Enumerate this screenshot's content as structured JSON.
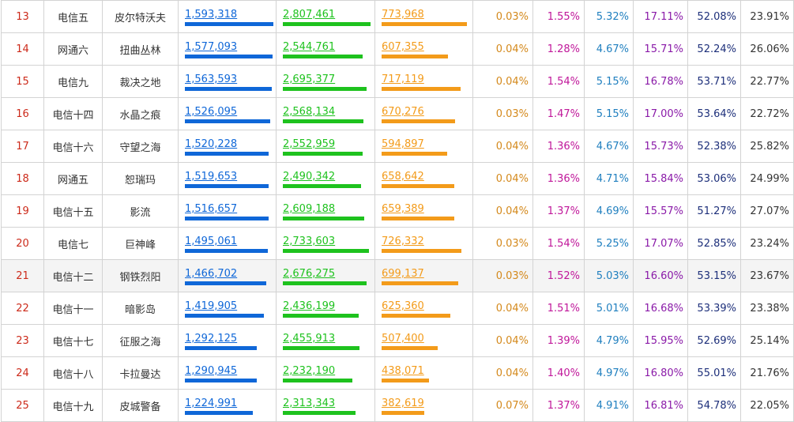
{
  "colors": {
    "rank": "#cc2a1a",
    "bar_blue": "#0f67d8",
    "bar_green": "#1ec21e",
    "bar_orange": "#f39b1a",
    "pct1": "#d4891c",
    "pct2": "#c0179a",
    "pct3": "#1f7fbf",
    "pct4": "#8a1aa8",
    "pct5": "#1d2f7a",
    "pct6": "#333333"
  },
  "rows": [
    {
      "rank": "13",
      "server": "电信五",
      "name": "皮尔特沃夫",
      "v1": "1,593,318",
      "v2": "2,807,461",
      "v3": "773,968",
      "p1": "0.03%",
      "p2": "1.55%",
      "p3": "5.32%",
      "p4": "17.11%",
      "p5": "52.08%",
      "p6": "23.91%",
      "f1": 1.0,
      "f2": 0.99,
      "f3": 0.96,
      "highlight": false
    },
    {
      "rank": "14",
      "server": "网通六",
      "name": "扭曲丛林",
      "v1": "1,577,093",
      "v2": "2,544,761",
      "v3": "607,355",
      "p1": "0.04%",
      "p2": "1.28%",
      "p3": "4.67%",
      "p4": "15.71%",
      "p5": "52.24%",
      "p6": "26.06%",
      "f1": 0.99,
      "f2": 0.9,
      "f3": 0.75,
      "highlight": false
    },
    {
      "rank": "15",
      "server": "电信九",
      "name": "裁决之地",
      "v1": "1,563,593",
      "v2": "2,695,377",
      "v3": "717,119",
      "p1": "0.04%",
      "p2": "1.54%",
      "p3": "5.15%",
      "p4": "16.78%",
      "p5": "53.71%",
      "p6": "22.77%",
      "f1": 0.98,
      "f2": 0.95,
      "f3": 0.89,
      "highlight": false
    },
    {
      "rank": "16",
      "server": "电信十四",
      "name": "水晶之痕",
      "v1": "1,526,095",
      "v2": "2,568,134",
      "v3": "670,276",
      "p1": "0.03%",
      "p2": "1.47%",
      "p3": "5.15%",
      "p4": "17.00%",
      "p5": "53.64%",
      "p6": "22.72%",
      "f1": 0.96,
      "f2": 0.91,
      "f3": 0.83,
      "highlight": false
    },
    {
      "rank": "17",
      "server": "电信十六",
      "name": "守望之海",
      "v1": "1,520,228",
      "v2": "2,552,959",
      "v3": "594,897",
      "p1": "0.04%",
      "p2": "1.36%",
      "p3": "4.67%",
      "p4": "15.73%",
      "p5": "52.38%",
      "p6": "25.82%",
      "f1": 0.95,
      "f2": 0.9,
      "f3": 0.74,
      "highlight": false
    },
    {
      "rank": "18",
      "server": "网通五",
      "name": "恕瑞玛",
      "v1": "1,519,653",
      "v2": "2,490,342",
      "v3": "658,642",
      "p1": "0.04%",
      "p2": "1.36%",
      "p3": "4.71%",
      "p4": "15.84%",
      "p5": "53.06%",
      "p6": "24.99%",
      "f1": 0.95,
      "f2": 0.88,
      "f3": 0.82,
      "highlight": false
    },
    {
      "rank": "19",
      "server": "电信十五",
      "name": "影流",
      "v1": "1,516,657",
      "v2": "2,609,188",
      "v3": "659,389",
      "p1": "0.04%",
      "p2": "1.37%",
      "p3": "4.69%",
      "p4": "15.57%",
      "p5": "51.27%",
      "p6": "27.07%",
      "f1": 0.95,
      "f2": 0.92,
      "f3": 0.82,
      "highlight": false
    },
    {
      "rank": "20",
      "server": "电信七",
      "name": "巨神峰",
      "v1": "1,495,061",
      "v2": "2,733,603",
      "v3": "726,332",
      "p1": "0.03%",
      "p2": "1.54%",
      "p3": "5.25%",
      "p4": "17.07%",
      "p5": "52.85%",
      "p6": "23.24%",
      "f1": 0.94,
      "f2": 0.97,
      "f3": 0.9,
      "highlight": false
    },
    {
      "rank": "21",
      "server": "电信十二",
      "name": "钢铁烈阳",
      "v1": "1,466,702",
      "v2": "2,676,275",
      "v3": "699,137",
      "p1": "0.03%",
      "p2": "1.52%",
      "p3": "5.03%",
      "p4": "16.60%",
      "p5": "53.15%",
      "p6": "23.67%",
      "f1": 0.92,
      "f2": 0.95,
      "f3": 0.87,
      "highlight": true
    },
    {
      "rank": "22",
      "server": "电信十一",
      "name": "暗影岛",
      "v1": "1,419,905",
      "v2": "2,436,199",
      "v3": "625,360",
      "p1": "0.04%",
      "p2": "1.51%",
      "p3": "5.01%",
      "p4": "16.68%",
      "p5": "53.39%",
      "p6": "23.38%",
      "f1": 0.89,
      "f2": 0.86,
      "f3": 0.78,
      "highlight": false
    },
    {
      "rank": "23",
      "server": "电信十七",
      "name": "征服之海",
      "v1": "1,292,125",
      "v2": "2,455,913",
      "v3": "507,400",
      "p1": "0.04%",
      "p2": "1.39%",
      "p3": "4.79%",
      "p4": "15.95%",
      "p5": "52.69%",
      "p6": "25.14%",
      "f1": 0.81,
      "f2": 0.87,
      "f3": 0.63,
      "highlight": false
    },
    {
      "rank": "24",
      "server": "电信十八",
      "name": "卡拉曼达",
      "v1": "1,290,945",
      "v2": "2,232,190",
      "v3": "438,071",
      "p1": "0.04%",
      "p2": "1.40%",
      "p3": "4.97%",
      "p4": "16.80%",
      "p5": "55.01%",
      "p6": "21.76%",
      "f1": 0.81,
      "f2": 0.79,
      "f3": 0.54,
      "highlight": false
    },
    {
      "rank": "25",
      "server": "电信十九",
      "name": "皮城警备",
      "v1": "1,224,991",
      "v2": "2,313,343",
      "v3": "382,619",
      "p1": "0.07%",
      "p2": "1.37%",
      "p3": "4.91%",
      "p4": "16.81%",
      "p5": "54.78%",
      "p6": "22.05%",
      "f1": 0.77,
      "f2": 0.82,
      "f3": 0.48,
      "highlight": false
    }
  ]
}
